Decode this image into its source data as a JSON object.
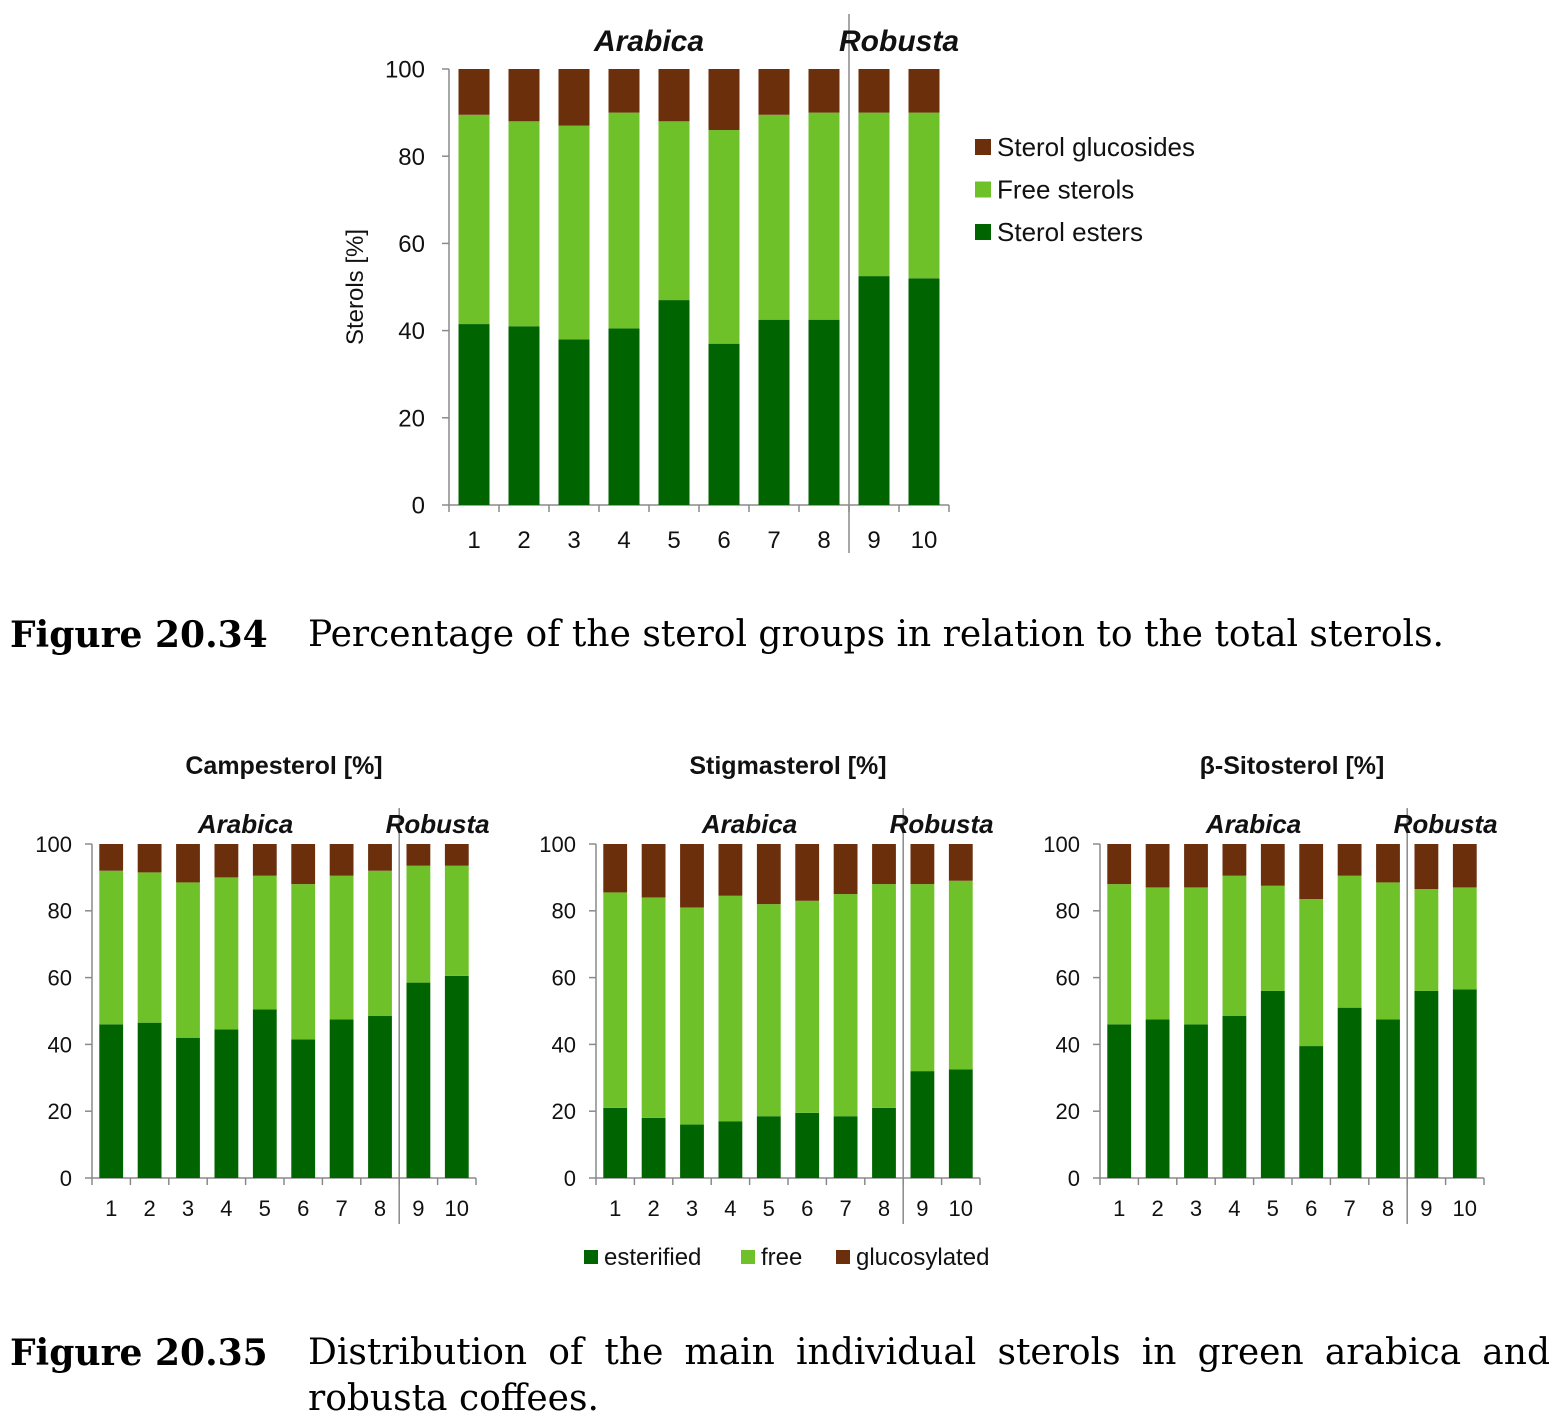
{
  "colors": {
    "esterified": "#006400",
    "free": "#6FC12A",
    "glucosylated": "#6B2F0C",
    "axis": "#8a8a8a"
  },
  "chart_data": [
    {
      "id": "figure-20-34",
      "type": "bar",
      "stacked": true,
      "title": "",
      "ylabel": "Sterols  [%]",
      "xlabel": "",
      "ylim": [
        0,
        100
      ],
      "yticks": [
        "0",
        "20",
        "40",
        "60",
        "80",
        "100"
      ],
      "categories": [
        "1",
        "2",
        "3",
        "4",
        "5",
        "6",
        "7",
        "8",
        "9",
        "10"
      ],
      "groups": [
        {
          "label": "Arabica",
          "from": 1,
          "to": 8
        },
        {
          "label": "Robusta",
          "from": 9,
          "to": 10
        }
      ],
      "legend_position": "right",
      "series": [
        {
          "name": "Sterol esters",
          "color": "#006400",
          "values": [
            41.5,
            41,
            38,
            40.5,
            47,
            37,
            42.5,
            42.5,
            52.5,
            52
          ]
        },
        {
          "name": "Free sterols",
          "color": "#6FC12A",
          "values": [
            48,
            47,
            49,
            49.5,
            41,
            49,
            47,
            47.5,
            37.5,
            38
          ]
        },
        {
          "name": "Sterol glucosides",
          "color": "#6B2F0C",
          "values": [
            10.5,
            12,
            13,
            10,
            12,
            14,
            10.5,
            10,
            10,
            10
          ]
        }
      ]
    },
    {
      "id": "campesterol",
      "type": "bar",
      "stacked": true,
      "title": "Campesterol [%]",
      "ylim": [
        0,
        100
      ],
      "yticks": [
        "0",
        "20",
        "40",
        "60",
        "80",
        "100"
      ],
      "categories": [
        "1",
        "2",
        "3",
        "4",
        "5",
        "6",
        "7",
        "8",
        "9",
        "10"
      ],
      "groups": [
        {
          "label": "Arabica",
          "from": 1,
          "to": 8
        },
        {
          "label": "Robusta",
          "from": 9,
          "to": 10
        }
      ],
      "series": [
        {
          "name": "esterified",
          "color": "#006400",
          "values": [
            46,
            46.5,
            42,
            44.5,
            50.5,
            41.5,
            47.5,
            48.5,
            58.5,
            60.5
          ]
        },
        {
          "name": "free",
          "color": "#6FC12A",
          "values": [
            46,
            45,
            46.5,
            45.5,
            40,
            46.5,
            43,
            43.5,
            35,
            33
          ]
        },
        {
          "name": "glucosylated",
          "color": "#6B2F0C",
          "values": [
            8,
            8.5,
            11.5,
            10,
            9.5,
            12,
            9.5,
            8,
            6.5,
            6.5
          ]
        }
      ]
    },
    {
      "id": "stigmasterol",
      "type": "bar",
      "stacked": true,
      "title": "Stigmasterol [%]",
      "ylim": [
        0,
        100
      ],
      "yticks": [
        "0",
        "20",
        "40",
        "60",
        "80",
        "100"
      ],
      "categories": [
        "1",
        "2",
        "3",
        "4",
        "5",
        "6",
        "7",
        "8",
        "9",
        "10"
      ],
      "groups": [
        {
          "label": "Arabica",
          "from": 1,
          "to": 8
        },
        {
          "label": "Robusta",
          "from": 9,
          "to": 10
        }
      ],
      "series": [
        {
          "name": "esterified",
          "color": "#006400",
          "values": [
            21,
            18,
            16,
            17,
            18.5,
            19.5,
            18.5,
            21,
            32,
            32.5
          ]
        },
        {
          "name": "free",
          "color": "#6FC12A",
          "values": [
            64.5,
            66,
            65,
            67.5,
            63.5,
            63.5,
            66.5,
            67,
            56,
            56.5
          ]
        },
        {
          "name": "glucosylated",
          "color": "#6B2F0C",
          "values": [
            14.5,
            16,
            19,
            15.5,
            18,
            17,
            15,
            12,
            12,
            11
          ]
        }
      ]
    },
    {
      "id": "beta-sitosterol",
      "type": "bar",
      "stacked": true,
      "title": "β-Sitosterol [%]",
      "ylim": [
        0,
        100
      ],
      "yticks": [
        "0",
        "20",
        "40",
        "60",
        "80",
        "100"
      ],
      "categories": [
        "1",
        "2",
        "3",
        "4",
        "5",
        "6",
        "7",
        "8",
        "9",
        "10"
      ],
      "groups": [
        {
          "label": "Arabica",
          "from": 1,
          "to": 8
        },
        {
          "label": "Robusta",
          "from": 9,
          "to": 10
        }
      ],
      "series": [
        {
          "name": "esterified",
          "color": "#006400",
          "values": [
            46,
            47.5,
            46,
            48.5,
            56,
            39.5,
            51,
            47.5,
            56,
            56.5
          ]
        },
        {
          "name": "free",
          "color": "#6FC12A",
          "values": [
            42,
            39.5,
            41,
            42,
            31.5,
            44,
            39.5,
            41,
            30.5,
            30.5
          ]
        },
        {
          "name": "glucosylated",
          "color": "#6B2F0C",
          "values": [
            12,
            13,
            13,
            9.5,
            12.5,
            16.5,
            9.5,
            11.5,
            13.5,
            13
          ]
        }
      ]
    }
  ],
  "legend2": [
    "esterified",
    "free",
    "glucosylated"
  ],
  "captions": {
    "fig1_number": "Figure 20.34",
    "fig1_text": "Percentage of the sterol groups in relation to the total sterols.",
    "fig2_number": "Figure 20.35",
    "fig2_text": "Distribution of the main individual sterols in green arabica and robusta coffees."
  }
}
